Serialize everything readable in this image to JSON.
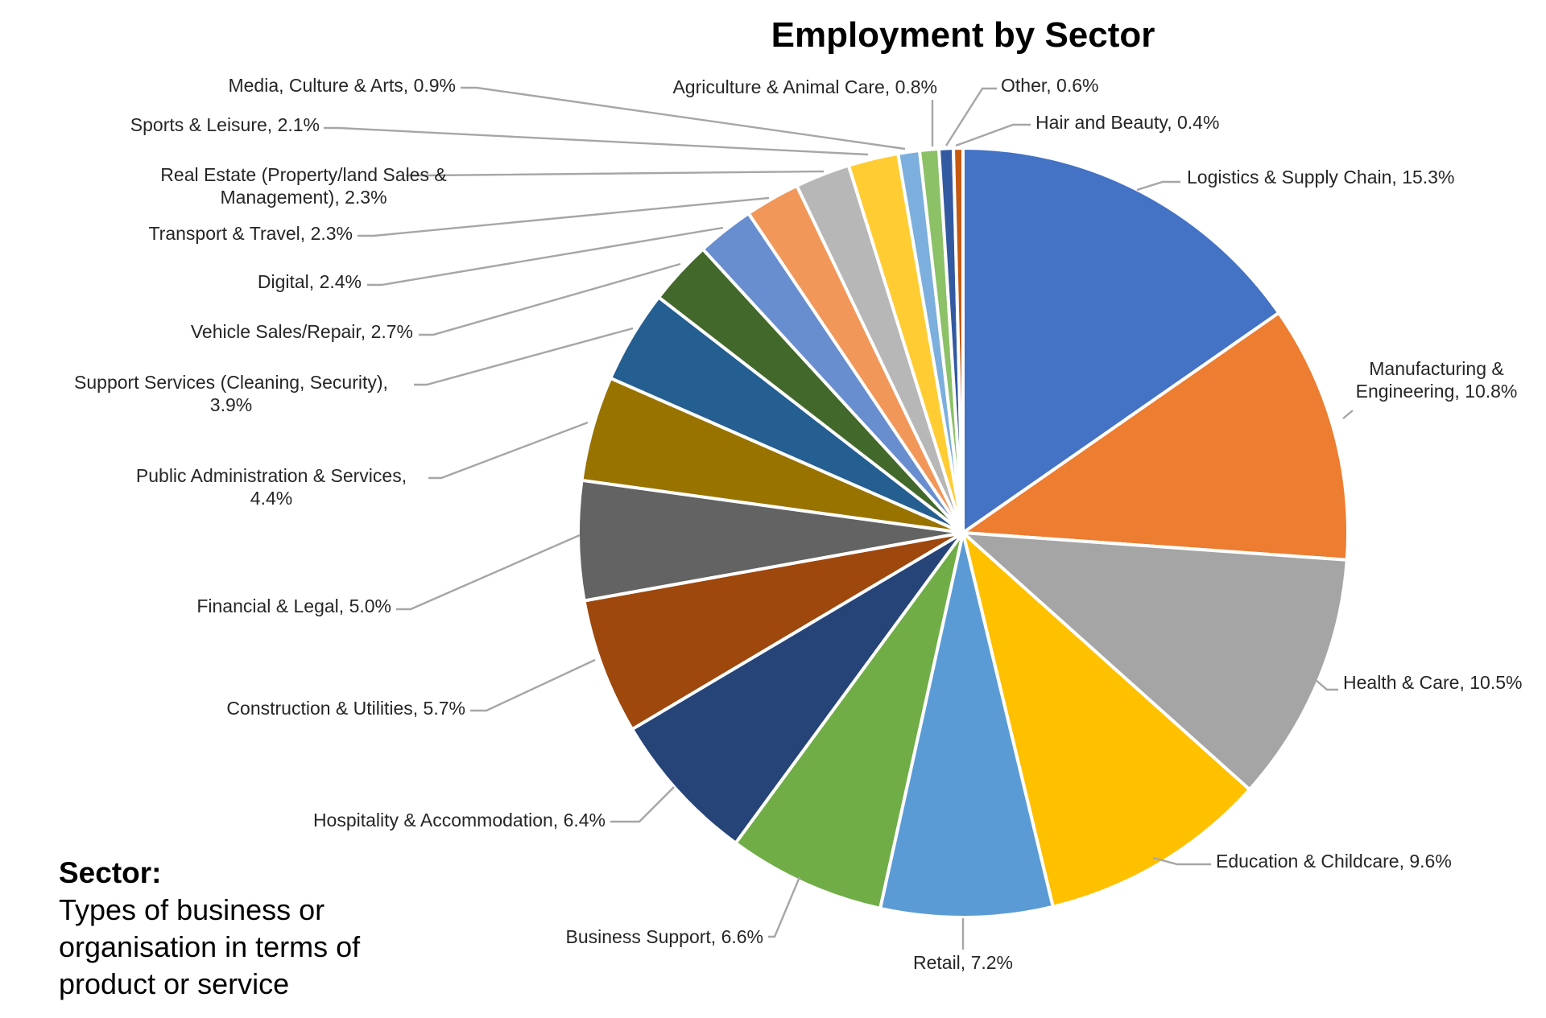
{
  "chart_data": {
    "type": "pie",
    "title": "Employment by Sector",
    "start": "12 o'clock, clockwise",
    "slices": [
      {
        "label": "Logistics & Supply Chain",
        "label_lines": [
          "Logistics & Supply Chain, 15.3%"
        ],
        "value": 15.3,
        "color": "#4472C4"
      },
      {
        "label": "Manufacturing & Engineering",
        "label_lines": [
          "Manufacturing &",
          "Engineering, 10.8%"
        ],
        "value": 10.8,
        "color": "#ED7D31"
      },
      {
        "label": "Health & Care",
        "label_lines": [
          "Health  & Care, 10.5%"
        ],
        "value": 10.5,
        "color": "#A5A5A5"
      },
      {
        "label": "Education & Childcare",
        "label_lines": [
          "Education & Childcare, 9.6%"
        ],
        "value": 9.6,
        "color": "#FFC000"
      },
      {
        "label": "Retail",
        "label_lines": [
          "Retail, 7.2%"
        ],
        "value": 7.2,
        "color": "#5B9BD5"
      },
      {
        "label": "Business Support",
        "label_lines": [
          "Business Support, 6.6%"
        ],
        "value": 6.6,
        "color": "#70AD47"
      },
      {
        "label": "Hospitality & Accommodation",
        "label_lines": [
          "Hospitality  & Accommodation, 6.4%"
        ],
        "value": 6.4,
        "color": "#264478"
      },
      {
        "label": "Construction & Utilities",
        "label_lines": [
          "Construction & Utilities, 5.7%"
        ],
        "value": 5.7,
        "color": "#9E480E"
      },
      {
        "label": "Financial & Legal",
        "label_lines": [
          "Financial & Legal, 5.0%"
        ],
        "value": 5.0,
        "color": "#636363"
      },
      {
        "label": "Public Administration & Services",
        "label_lines": [
          "Public Administration  & Services,",
          "4.4%"
        ],
        "value": 4.4,
        "color": "#997300"
      },
      {
        "label": "Support Services (Cleaning, Security)",
        "label_lines": [
          "Support Services (Cleaning, Security),",
          "3.9%"
        ],
        "value": 3.9,
        "color": "#255E91"
      },
      {
        "label": "Vehicle Sales/Repair",
        "label_lines": [
          "Vehicle Sales/Repair, 2.7%"
        ],
        "value": 2.7,
        "color": "#43682B"
      },
      {
        "label": "Digital",
        "label_lines": [
          "Digital, 2.4%"
        ],
        "value": 2.4,
        "color": "#698ED0"
      },
      {
        "label": "Transport & Travel",
        "label_lines": [
          "Transport & Travel, 2.3%"
        ],
        "value": 2.3,
        "color": "#F1975A"
      },
      {
        "label": "Real Estate (Property/land Sales & Management)",
        "label_lines": [
          "Real Estate (Property/land Sales &",
          "Management), 2.3%"
        ],
        "value": 2.3,
        "color": "#B7B7B7"
      },
      {
        "label": "Sports & Leisure",
        "label_lines": [
          "Sports & Leisure, 2.1%"
        ],
        "value": 2.1,
        "color": "#FFCD33"
      },
      {
        "label": "Media, Culture & Arts",
        "label_lines": [
          "Media, Culture & Arts, 0.9%"
        ],
        "value": 0.9,
        "color": "#7CAFDD"
      },
      {
        "label": "Agriculture & Animal Care",
        "label_lines": [
          "Agriculture & Animal Care, 0.8%"
        ],
        "value": 0.8,
        "color": "#8CC168"
      },
      {
        "label": "Other",
        "label_lines": [
          "Other, 0.6%"
        ],
        "value": 0.6,
        "color": "#335AA1"
      },
      {
        "label": "Hair and Beauty",
        "label_lines": [
          "Hair and Beauty, 0.4%"
        ],
        "value": 0.4,
        "color": "#C55A11"
      }
    ]
  },
  "note": {
    "heading": "Sector:",
    "text": "Types of business or organisation in terms of product or service"
  }
}
